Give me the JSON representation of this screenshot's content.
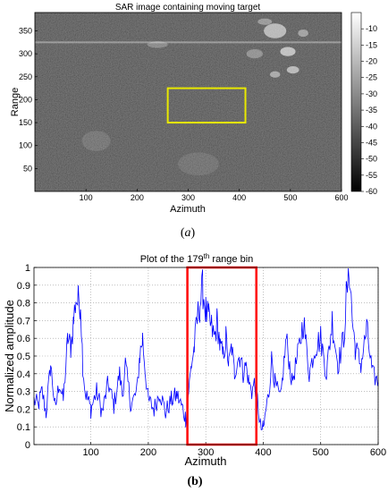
{
  "figure": {
    "caption_a_open": "(",
    "caption_a_letter": "a",
    "caption_a_close": ")",
    "caption_b": "(b)"
  },
  "chart_data": [
    {
      "type": "heatmap",
      "title": "SAR image containing moving target",
      "xlabel": "Azimuth",
      "ylabel": "Range",
      "xlim": [
        0,
        600
      ],
      "ylim": [
        0,
        390
      ],
      "xticks": [
        100,
        200,
        300,
        400,
        500,
        600
      ],
      "yticks": [
        50,
        100,
        150,
        200,
        250,
        300,
        350
      ],
      "colorbar": {
        "range": [
          -60,
          -5
        ],
        "ticks": [
          -10,
          -15,
          -20,
          -25,
          -30,
          -35,
          -40,
          -45,
          -50,
          -55,
          -60
        ],
        "colormap": "gray"
      },
      "highlight_box": {
        "x": [
          260,
          412
        ],
        "y": [
          150,
          225
        ],
        "color": "#e8e800"
      },
      "bright_line_range": 325,
      "colors": {
        "background": "#3c3c3c"
      }
    },
    {
      "type": "line",
      "title_prefix": "Plot of the 179",
      "title_sup": "th",
      "title_suffix": " range bin",
      "xlabel": "Azimuth",
      "ylabel": "Normalized amplitude",
      "xlim": [
        1,
        600
      ],
      "ylim": [
        0,
        1
      ],
      "grid": true,
      "xticks": [
        100,
        200,
        300,
        400,
        500,
        600
      ],
      "yticks": [
        0,
        0.1,
        0.2,
        0.3,
        0.4,
        0.5,
        0.6,
        0.7,
        0.8,
        0.9,
        1
      ],
      "highlight_box": {
        "x": [
          268,
          388
        ],
        "y": [
          0,
          1
        ],
        "color": "#ff0000"
      },
      "series": [
        {
          "color": "#0000ff",
          "x": [
            1,
            8,
            15,
            22,
            30,
            38,
            45,
            52,
            60,
            65,
            70,
            74,
            78,
            82,
            86,
            90,
            95,
            100,
            110,
            120,
            130,
            140,
            150,
            155,
            160,
            170,
            180,
            185,
            190,
            195,
            200,
            210,
            220,
            230,
            240,
            250,
            260,
            265,
            270,
            275,
            280,
            285,
            290,
            295,
            300,
            305,
            310,
            315,
            320,
            325,
            330,
            335,
            340,
            345,
            350,
            355,
            360,
            365,
            370,
            375,
            380,
            385,
            390,
            395,
            400,
            405,
            410,
            415,
            420,
            430,
            440,
            450,
            460,
            470,
            480,
            490,
            500,
            510,
            520,
            530,
            540,
            545,
            550,
            555,
            560,
            570,
            580,
            590,
            600
          ],
          "y": [
            0.25,
            0.22,
            0.3,
            0.18,
            0.45,
            0.2,
            0.35,
            0.25,
            0.6,
            0.55,
            0.7,
            0.83,
            0.8,
            0.82,
            0.45,
            0.3,
            0.25,
            0.2,
            0.3,
            0.18,
            0.35,
            0.22,
            0.4,
            0.28,
            0.45,
            0.22,
            0.3,
            0.5,
            0.6,
            0.4,
            0.25,
            0.2,
            0.3,
            0.18,
            0.25,
            0.28,
            0.2,
            0.15,
            0.3,
            0.45,
            0.55,
            0.7,
            0.8,
            0.88,
            0.75,
            0.7,
            0.66,
            0.6,
            0.7,
            0.55,
            0.5,
            0.6,
            0.45,
            0.55,
            0.4,
            0.48,
            0.5,
            0.4,
            0.45,
            0.35,
            0.3,
            0.35,
            0.25,
            0.1,
            0.08,
            0.2,
            0.3,
            0.5,
            0.35,
            0.25,
            0.6,
            0.35,
            0.5,
            0.7,
            0.4,
            0.55,
            0.6,
            0.4,
            0.7,
            0.45,
            0.6,
            0.85,
            1.0,
            0.7,
            0.55,
            0.45,
            0.65,
            0.4,
            0.35
          ]
        }
      ]
    }
  ]
}
